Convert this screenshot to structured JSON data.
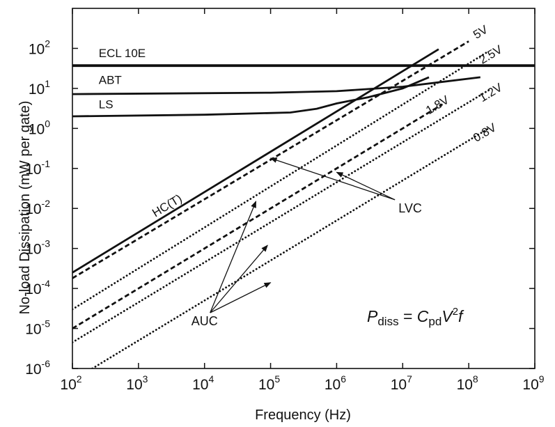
{
  "chart_data": {
    "type": "line",
    "title": "",
    "xlabel": "Frequency (Hz)",
    "ylabel": "No-load Dissipation (mW per gate)",
    "x_scale": "log",
    "y_scale": "log",
    "xlim": [
      100,
      1000000000
    ],
    "ylim": [
      1e-06,
      1000
    ],
    "x_ticks": [
      {
        "base": "10",
        "exp": "2"
      },
      {
        "base": "10",
        "exp": "3"
      },
      {
        "base": "10",
        "exp": "4"
      },
      {
        "base": "10",
        "exp": "5"
      },
      {
        "base": "10",
        "exp": "6"
      },
      {
        "base": "10",
        "exp": "7"
      },
      {
        "base": "10",
        "exp": "8"
      },
      {
        "base": "10",
        "exp": "9"
      }
    ],
    "y_ticks": [
      {
        "base": "10",
        "exp": "-6"
      },
      {
        "base": "10",
        "exp": "-5"
      },
      {
        "base": "10",
        "exp": "-4"
      },
      {
        "base": "10",
        "exp": "-3"
      },
      {
        "base": "10",
        "exp": "-2"
      },
      {
        "base": "10",
        "exp": "-1"
      },
      {
        "base": "10",
        "exp": "0"
      },
      {
        "base": "10",
        "exp": "1"
      },
      {
        "base": "10",
        "exp": "2"
      }
    ],
    "grid": false,
    "series": [
      {
        "name": "ECL 10E",
        "style": "solid",
        "stroke": "heavy",
        "points": [
          [
            100,
            37
          ],
          [
            1000000000,
            37
          ]
        ]
      },
      {
        "name": "ABT",
        "style": "solid",
        "stroke": "normal",
        "points": [
          [
            100,
            7.2
          ],
          [
            100000,
            7.8
          ],
          [
            1000000,
            8.5
          ],
          [
            10000000,
            11
          ],
          [
            150000000,
            19
          ]
        ]
      },
      {
        "name": "LS",
        "style": "solid",
        "stroke": "normal",
        "points": [
          [
            100,
            2.0
          ],
          [
            10000,
            2.2
          ],
          [
            200000,
            2.5
          ],
          [
            500000,
            3.1
          ],
          [
            1000000,
            4.2
          ],
          [
            3000000,
            6.0
          ],
          [
            10000000,
            10
          ],
          [
            25000000,
            19
          ]
        ]
      },
      {
        "name": "HC(T)",
        "style": "solid",
        "stroke": "normal",
        "points": [
          [
            100,
            0.00025
          ],
          [
            35000000,
            95
          ]
        ]
      },
      {
        "name": "5V",
        "style": "dashed",
        "stroke": "normal",
        "points": [
          [
            100,
            0.00018
          ],
          [
            100000000,
            150
          ]
        ]
      },
      {
        "name": "2.5V",
        "style": "dotted",
        "stroke": "normal",
        "points": [
          [
            100,
            3e-05
          ],
          [
            200000000,
            85
          ]
        ]
      },
      {
        "name": "1.8V",
        "style": "dashed",
        "stroke": "normal",
        "points": [
          [
            100,
            1e-05
          ],
          [
            40000000,
            4
          ]
        ]
      },
      {
        "name": "1.2V",
        "style": "dotted",
        "stroke": "normal",
        "points": [
          [
            100,
            4.5e-06
          ],
          [
            200000000,
            9
          ]
        ]
      },
      {
        "name": "0.8V",
        "style": "dotted",
        "stroke": "normal",
        "points": [
          [
            200,
            1e-06
          ],
          [
            200000000,
            1
          ]
        ]
      }
    ],
    "line_labels": [
      {
        "text": "ECL 10E",
        "x": 250,
        "y": 60
      },
      {
        "text": "ABT",
        "x": 250,
        "y": 13
      },
      {
        "text": "LS",
        "x": 250,
        "y": 3.2
      },
      {
        "text": "HC(T)",
        "x": 1800,
        "y": 0.006,
        "rotate_with_slope": true
      },
      {
        "text": "5V",
        "x": 130000000,
        "y": 170,
        "rotate_with_slope": true
      },
      {
        "text": "2.5V",
        "x": 160000000,
        "y": 40,
        "rotate_with_slope": true
      },
      {
        "text": "1.8V",
        "x": 25000000,
        "y": 2.2,
        "rotate_with_slope": true
      },
      {
        "text": "1.2V",
        "x": 160000000,
        "y": 4.5,
        "rotate_with_slope": true
      },
      {
        "text": "0.8V",
        "x": 130000000,
        "y": 0.45,
        "rotate_with_slope": true
      }
    ],
    "annotations": [
      {
        "text": "LVC",
        "x": 13000000,
        "y": 0.008,
        "arrows_to": [
          [
            100000,
            0.18
          ],
          [
            1000000,
            0.08
          ]
        ]
      },
      {
        "text": "AUC",
        "x": 10000,
        "y": 1.2e-05,
        "arrows_to": [
          [
            60000,
            0.015
          ],
          [
            90000,
            0.0012
          ],
          [
            100000,
            0.00014
          ]
        ]
      }
    ],
    "formula": {
      "p": "P",
      "p_sub": "diss",
      "eq": " = ",
      "c": "C",
      "c_sub": "pd",
      "v": "V",
      "v_exp": "2",
      "f": "f"
    }
  }
}
